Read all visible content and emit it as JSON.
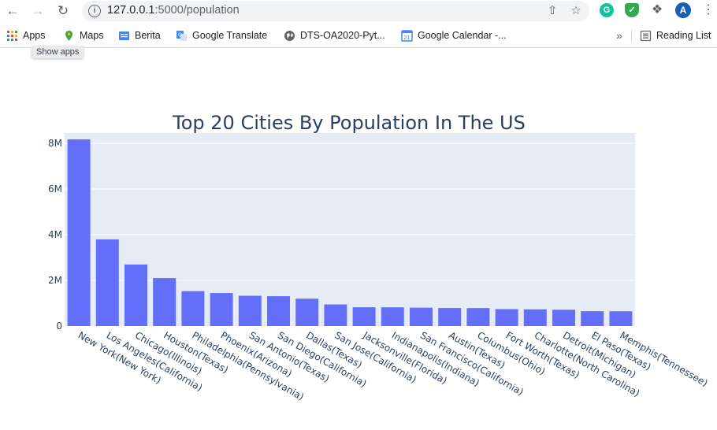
{
  "browser": {
    "url_host": "127.0.0.1",
    "url_path": ":5000/population",
    "tooltip": "Show apps",
    "bookmarks": [
      {
        "label": "Apps",
        "icon": "apps-grid-icon"
      },
      {
        "label": "Maps",
        "icon": "maps-pin-icon"
      },
      {
        "label": "Berita",
        "icon": "news-icon"
      },
      {
        "label": "Google Translate",
        "icon": "translate-icon"
      },
      {
        "label": "DTS-OA2020-Pyt...",
        "icon": "globe-icon"
      },
      {
        "label": "Google Calendar -...",
        "icon": "calendar-icon"
      }
    ],
    "overflow_label": "»",
    "reading_list": "Reading List",
    "profile_initial": "A",
    "ext_grammarly": "G"
  },
  "chart_data": {
    "type": "bar",
    "title": "Top 20 Cities By Population In The US",
    "xlabel": "",
    "ylabel": "",
    "ylim": [
      0,
      8450000
    ],
    "yticks": [
      0,
      2000000,
      4000000,
      6000000,
      8000000
    ],
    "ytick_labels": [
      "0",
      "2M",
      "4M",
      "6M",
      "8M"
    ],
    "bar_color": "#636efa",
    "plot_bg": "#e5ecf6",
    "grid": true,
    "categories": [
      "New York(New York)",
      "Los Angeles(California)",
      "Chicago(Illinois)",
      "Houston(Texas)",
      "Philadelphia(Pennsylvania)",
      "Phoenix(Arizona)",
      "San Antonio(Texas)",
      "San Diego(California)",
      "Dallas(Texas)",
      "San Jose(California)",
      "Jacksonville(Florida)",
      "Indianapolis(Indiana)",
      "San Francisco(California)",
      "Austin(Texas)",
      "Columbus(Ohio)",
      "Fort Worth(Texas)",
      "Charlotte(North Carolina)",
      "Detroit(Michigan)",
      "El Paso(Texas)",
      "Memphis(Tennessee)"
    ],
    "values": [
      8175000,
      3793000,
      2696000,
      2100000,
      1526000,
      1446000,
      1327000,
      1307000,
      1198000,
      946000,
      822000,
      820000,
      805000,
      790000,
      787000,
      741000,
      731000,
      714000,
      649000,
      647000
    ]
  }
}
